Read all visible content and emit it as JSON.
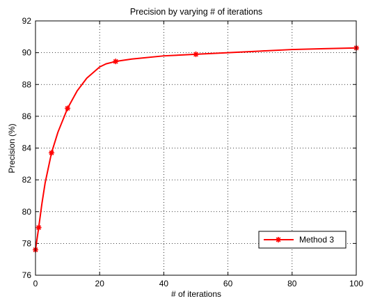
{
  "chart_data": {
    "type": "line",
    "title": "Precision by varying # of iterations",
    "xlabel": "# of iterations",
    "ylabel": "Precision (%)",
    "xlim": [
      0,
      100
    ],
    "ylim": [
      76,
      92
    ],
    "xticks": [
      0,
      20,
      40,
      60,
      80,
      100
    ],
    "yticks": [
      76,
      78,
      80,
      82,
      84,
      86,
      88,
      90,
      92
    ],
    "grid": true,
    "legend_position": "bottom-right",
    "series": [
      {
        "name": "Method 3",
        "color": "#ff0000",
        "marker": "asterisk",
        "x": [
          0,
          1,
          5,
          10,
          25,
          50,
          100
        ],
        "y": [
          77.6,
          79.0,
          83.7,
          86.5,
          89.45,
          89.9,
          90.3
        ],
        "curve_x": [
          0,
          1,
          2,
          3,
          5,
          7,
          10,
          13,
          16,
          20,
          22,
          25,
          30,
          40,
          50,
          60,
          70,
          80,
          90,
          100
        ],
        "curve_y": [
          77.6,
          79.0,
          80.5,
          81.8,
          83.7,
          85.0,
          86.5,
          87.6,
          88.4,
          89.1,
          89.3,
          89.45,
          89.6,
          89.8,
          89.9,
          90.0,
          90.1,
          90.2,
          90.25,
          90.3
        ]
      }
    ]
  }
}
